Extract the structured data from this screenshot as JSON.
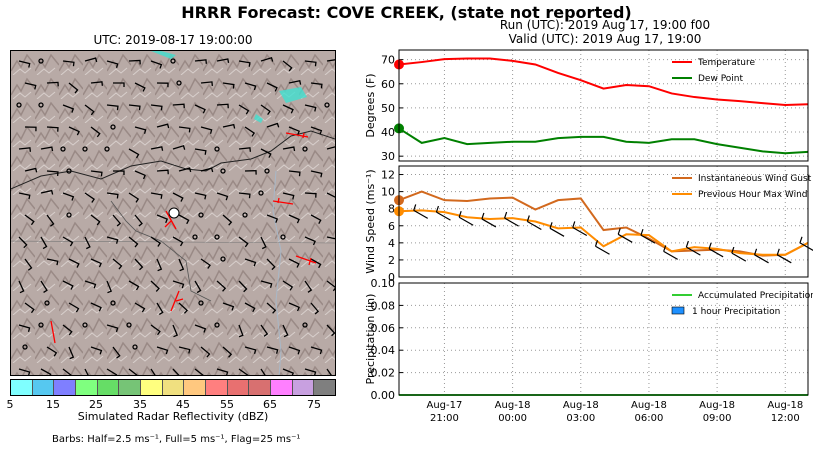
{
  "main_title": "HRRR Forecast: COVE CREEK, (state not reported)",
  "map_title": "UTC: 2019-08-17 19:00:00",
  "run_title": "Run (UTC): 2019 Aug 17, 19:00 f00",
  "valid_title": "Valid (UTC): 2019 Aug 17, 19:00",
  "colorbar": {
    "label": "Simulated Radar Reflectivity (dBZ)",
    "ticks": [
      "5",
      "15",
      "25",
      "35",
      "45",
      "55",
      "65",
      "75"
    ],
    "colors": [
      "#7fffff",
      "#56c8f0",
      "#7f7fff",
      "#7fff7f",
      "#66dd66",
      "#76c476",
      "#ffff7f",
      "#f0e080",
      "#ffc87f",
      "#ff7f7f",
      "#e87070",
      "#d87070",
      "#ff7fff",
      "#c8a0e0",
      "#7f7f7f"
    ]
  },
  "barbs_note": "Barbs: Half=2.5 ms⁻¹, Full=5 ms⁻¹, Flag=25 ms⁻¹",
  "chart_data": [
    {
      "type": "line",
      "ylabel": "Degrees (F)",
      "ylim": [
        28,
        74
      ],
      "yticks": [
        30,
        40,
        50,
        60,
        70
      ],
      "x_hours": [
        0,
        1,
        2,
        3,
        4,
        5,
        6,
        7,
        8,
        9,
        10,
        11,
        12,
        13,
        14,
        15,
        16,
        17,
        18
      ],
      "series": [
        {
          "name": "Temperature",
          "color": "#ff0000",
          "values": [
            68,
            69,
            70.2,
            70.5,
            70.5,
            69.5,
            68,
            64.5,
            61.5,
            58,
            59.5,
            59,
            56,
            54.5,
            53.5,
            52.8,
            52,
            51.2,
            51.5
          ]
        },
        {
          "name": "Dew Point",
          "color": "#008000",
          "values": [
            41.5,
            35.5,
            37.5,
            35,
            35.5,
            36,
            36,
            37.5,
            38,
            38,
            36,
            35.5,
            37,
            37,
            35,
            33.5,
            32,
            31.2,
            31.8
          ]
        }
      ],
      "legend": "top-right"
    },
    {
      "type": "line",
      "ylabel": "Wind Speed (ms⁻¹)",
      "ylim": [
        0,
        13
      ],
      "yticks": [
        0,
        2,
        4,
        6,
        8,
        10,
        12
      ],
      "x_hours": [
        0,
        1,
        2,
        3,
        4,
        5,
        6,
        7,
        8,
        9,
        10,
        11,
        12,
        13,
        14,
        15,
        16,
        17,
        18
      ],
      "series": [
        {
          "name": "Instantaneous Wind Gust",
          "color": "#d2691e",
          "values": [
            9,
            10,
            9,
            8.9,
            9.2,
            9.3,
            7.9,
            9,
            9.2,
            5.5,
            5.8,
            4.5,
            3,
            3.1,
            3.2,
            3,
            2.5,
            2.6,
            4
          ]
        },
        {
          "name": "Previous Hour Max Wind",
          "color": "#ff8c00",
          "values": [
            7.7,
            7.8,
            7.6,
            7,
            6.8,
            6.9,
            6.5,
            5.7,
            5.8,
            3.6,
            5,
            4.9,
            3,
            3.5,
            3.3,
            2.8,
            2.6,
            2.6,
            4
          ]
        }
      ],
      "legend": "top-right"
    },
    {
      "type": "bar",
      "ylabel": "Precipitation (in)",
      "ylim": [
        0,
        0.1
      ],
      "yticks": [
        "0.00",
        "0.02",
        "0.04",
        "0.06",
        "0.08",
        "0.10"
      ],
      "x_hours": [
        0,
        1,
        2,
        3,
        4,
        5,
        6,
        7,
        8,
        9,
        10,
        11,
        12,
        13,
        14,
        15,
        16,
        17,
        18
      ],
      "series": [
        {
          "name": "Accumulated Precipitation",
          "color": "#32cd32",
          "values": [
            0,
            0,
            0,
            0,
            0,
            0,
            0,
            0,
            0,
            0,
            0,
            0,
            0,
            0,
            0,
            0,
            0,
            0,
            0
          ]
        },
        {
          "name": "1 hour Precipitation",
          "color": "#1e90ff",
          "values": [
            0,
            0,
            0,
            0,
            0,
            0,
            0,
            0,
            0,
            0,
            0,
            0,
            0,
            0,
            0,
            0,
            0,
            0,
            0
          ]
        }
      ],
      "legend": "top-right"
    }
  ],
  "x_tick_labels": [
    {
      "hour": 2,
      "line1": "Aug-17",
      "line2": "21:00"
    },
    {
      "hour": 5,
      "line1": "Aug-18",
      "line2": "00:00"
    },
    {
      "hour": 8,
      "line1": "Aug-18",
      "line2": "03:00"
    },
    {
      "hour": 11,
      "line1": "Aug-18",
      "line2": "06:00"
    },
    {
      "hour": 14,
      "line1": "Aug-18",
      "line2": "09:00"
    },
    {
      "hour": 17,
      "line1": "Aug-18",
      "line2": "12:00"
    }
  ]
}
